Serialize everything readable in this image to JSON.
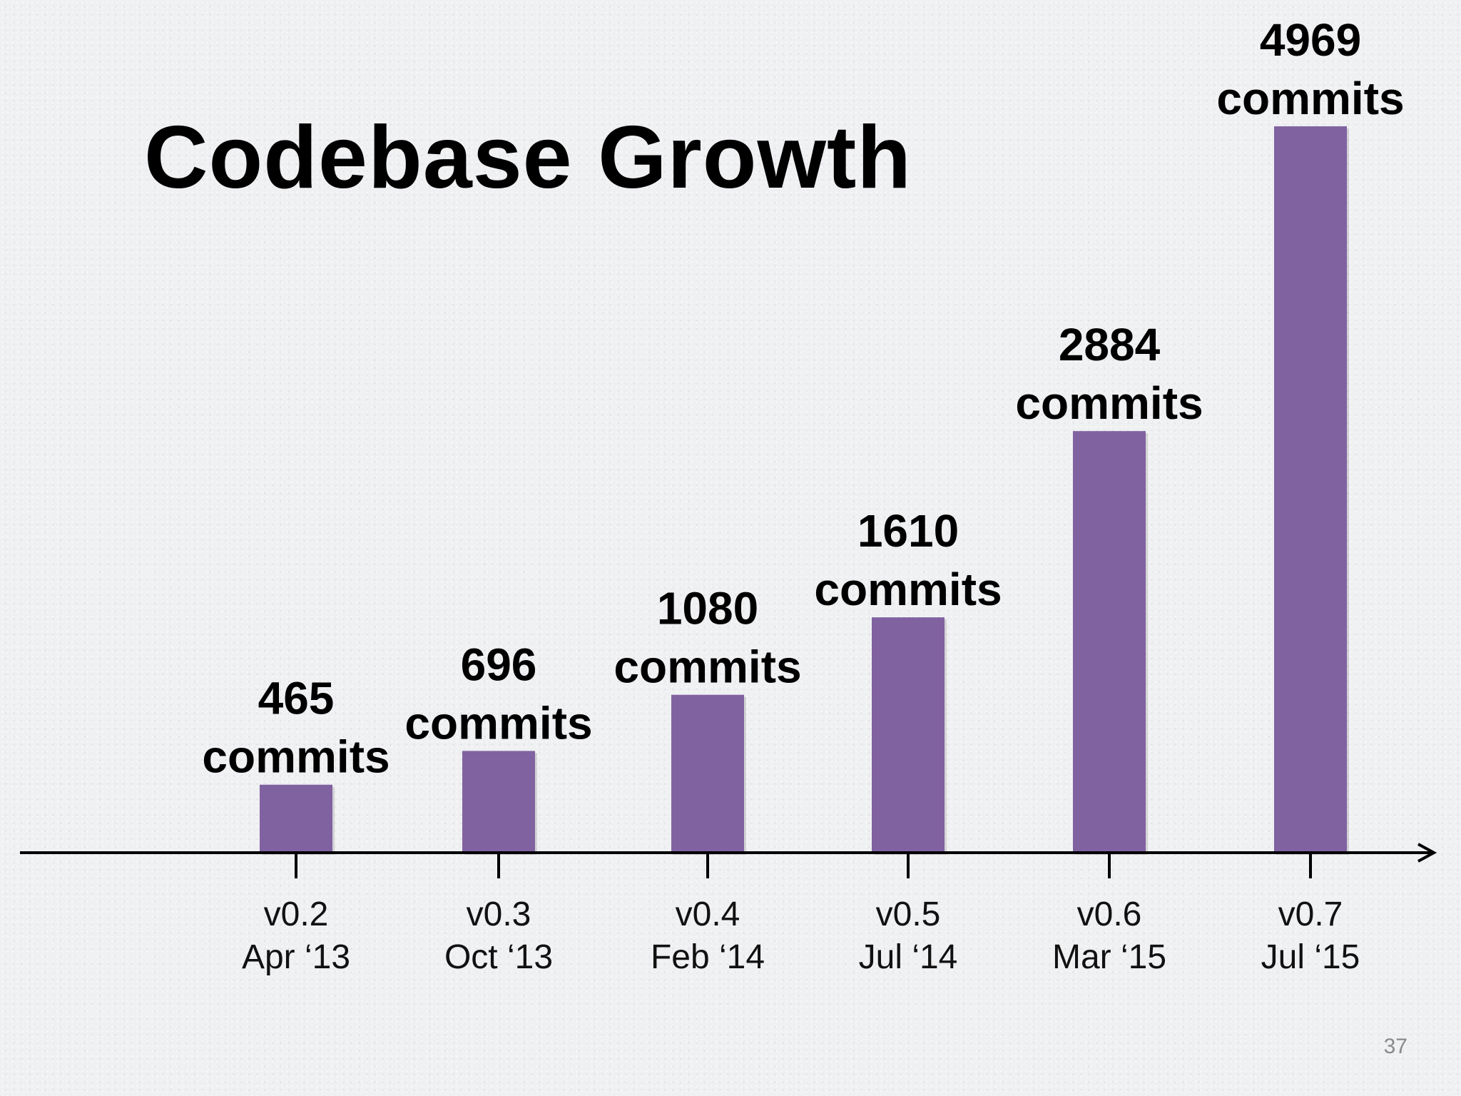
{
  "slide": {
    "title": "Codebase Growth",
    "page_number": "37"
  },
  "colors": {
    "bar": "#8062a1",
    "axis": "#000000",
    "text": "#000000",
    "background": "#eff0f2"
  },
  "chart_data": {
    "type": "bar",
    "title": "Codebase Growth",
    "xlabel": "",
    "ylabel": "",
    "categories": [
      [
        "v0.2",
        "Apr ‘13"
      ],
      [
        "v0.3",
        "Oct ‘13"
      ],
      [
        "v0.4",
        "Feb ‘14"
      ],
      [
        "v0.5",
        "Jul ‘14"
      ],
      [
        "v0.6",
        "Mar ‘15"
      ],
      [
        "v0.7",
        "Jul ‘15"
      ]
    ],
    "values": [
      465,
      696,
      1080,
      1610,
      2884,
      4969
    ],
    "data_labels": [
      [
        "465",
        "commits"
      ],
      [
        "696",
        "commits"
      ],
      [
        "1080",
        "commits"
      ],
      [
        "1610",
        "commits"
      ],
      [
        "2884",
        "commits"
      ],
      [
        "4969",
        "commits"
      ]
    ],
    "ylim": [
      0,
      4969
    ],
    "grid": false,
    "legend": "none",
    "x_axis_arrow": true
  }
}
